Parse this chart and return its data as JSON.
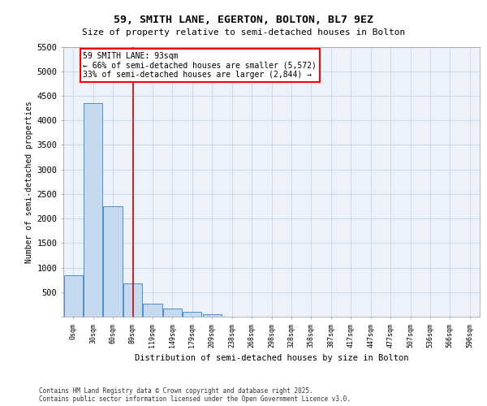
{
  "title_line1": "59, SMITH LANE, EGERTON, BOLTON, BL7 9EZ",
  "title_line2": "Size of property relative to semi-detached houses in Bolton",
  "xlabel": "Distribution of semi-detached houses by size in Bolton",
  "ylabel": "Number of semi-detached properties",
  "bar_color": "#c5d9ef",
  "bar_edge_color": "#4a8fcc",
  "vline_color": "#cc0000",
  "bg_color": "#edf2fa",
  "grid_color": "#c5d5e8",
  "categories": [
    "0sqm",
    "30sqm",
    "60sqm",
    "89sqm",
    "119sqm",
    "149sqm",
    "179sqm",
    "209sqm",
    "238sqm",
    "268sqm",
    "298sqm",
    "328sqm",
    "358sqm",
    "387sqm",
    "417sqm",
    "447sqm",
    "477sqm",
    "507sqm",
    "536sqm",
    "566sqm",
    "596sqm"
  ],
  "values": [
    850,
    4350,
    2250,
    680,
    260,
    160,
    100,
    50,
    0,
    0,
    0,
    0,
    0,
    0,
    0,
    0,
    0,
    0,
    0,
    0,
    0
  ],
  "ylim_max": 5500,
  "yticks": [
    0,
    500,
    1000,
    1500,
    2000,
    2500,
    3000,
    3500,
    4000,
    4500,
    5000,
    5500
  ],
  "vline_pos": 3.0,
  "ann_line1": "59 SMITH LANE: 93sqm",
  "ann_line2": "← 66% of semi-detached houses are smaller (5,572)",
  "ann_line3": "33% of semi-detached houses are larger (2,844) →",
  "footer1": "Contains HM Land Registry data © Crown copyright and database right 2025.",
  "footer2": "Contains public sector information licensed under the Open Government Licence v3.0."
}
